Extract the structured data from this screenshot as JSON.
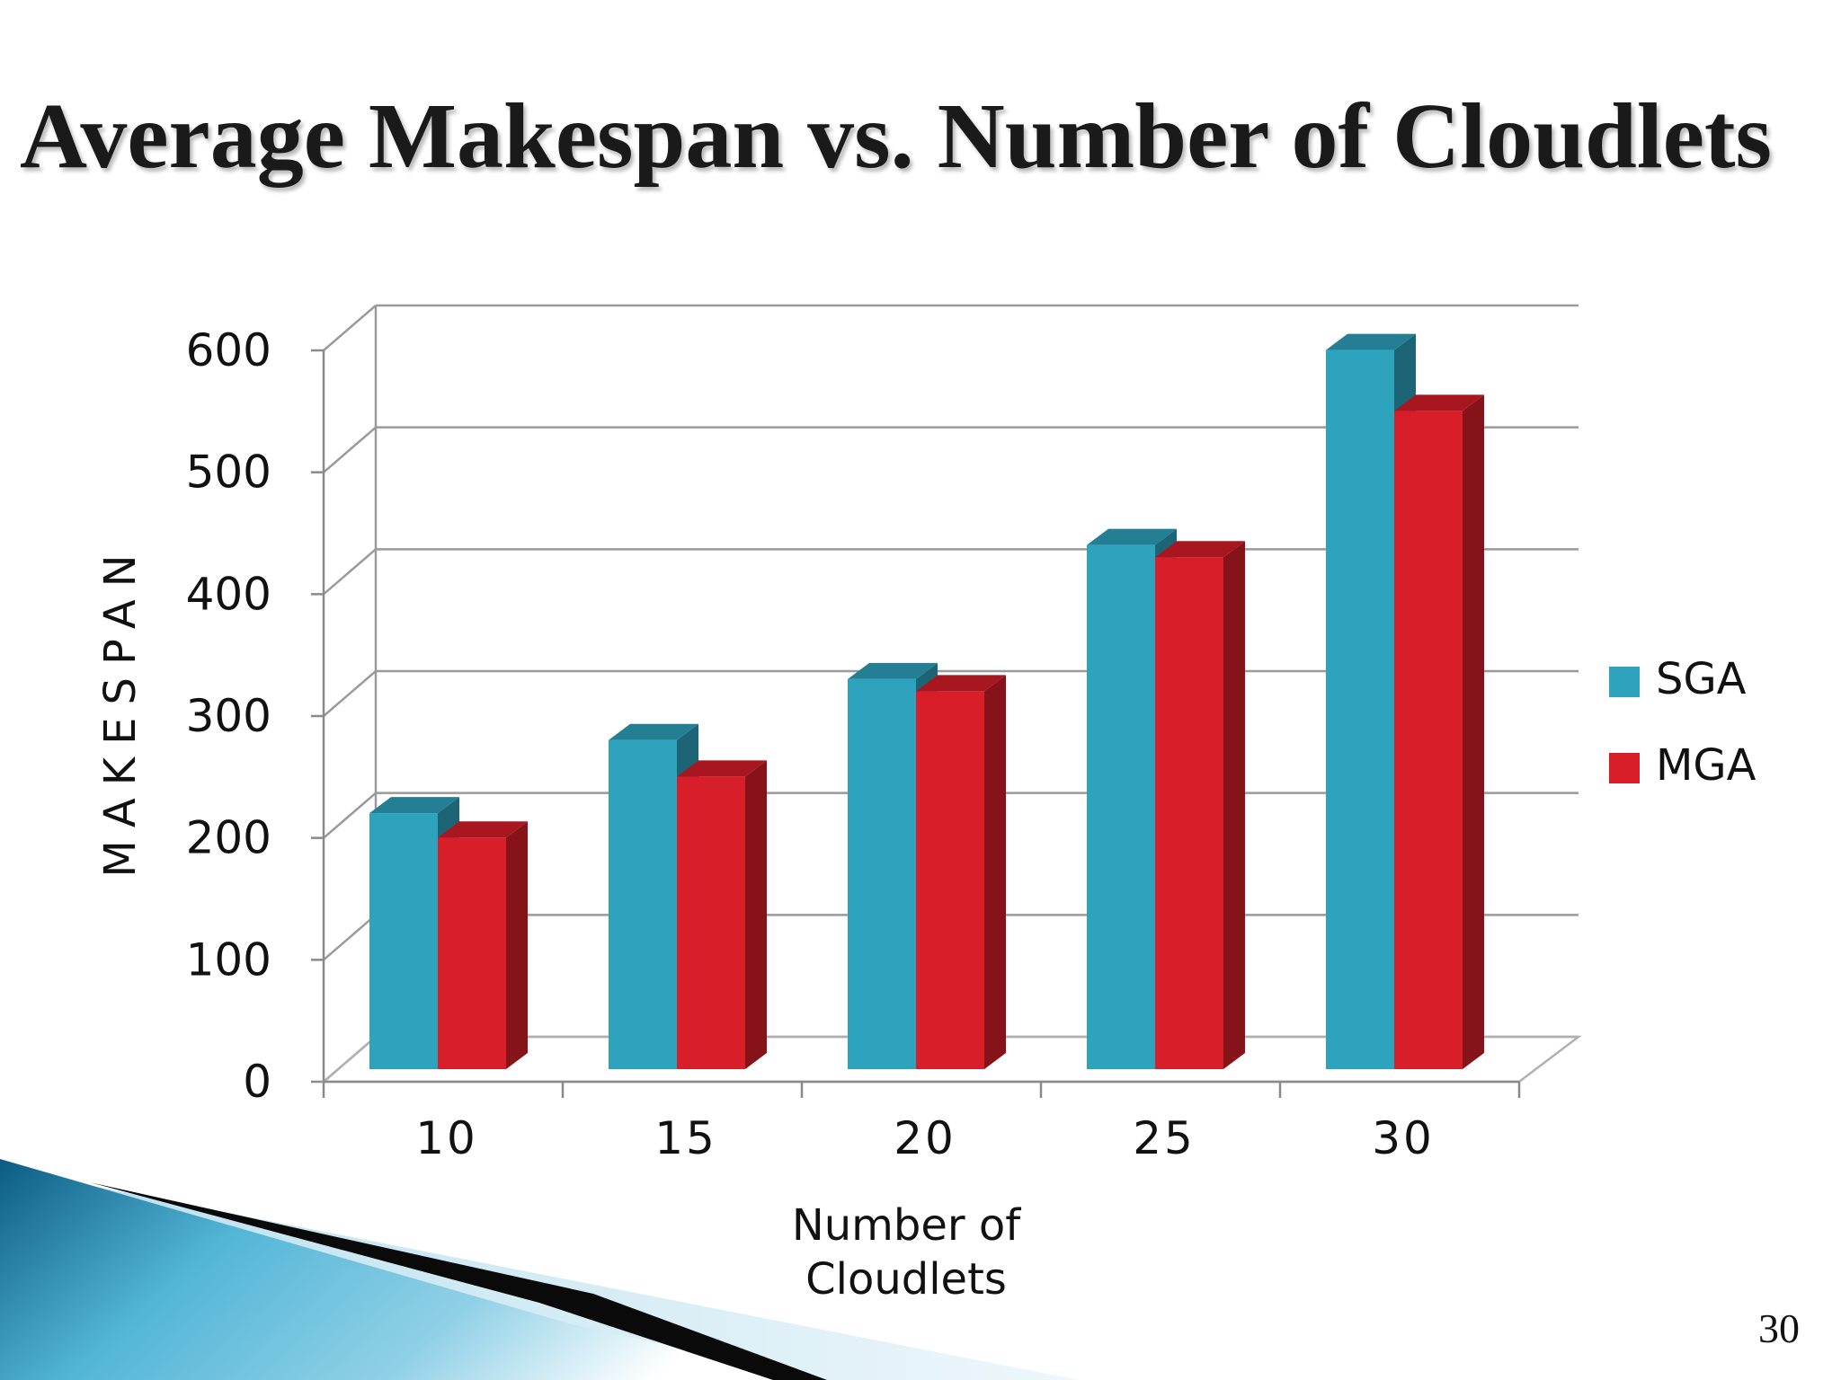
{
  "slide": {
    "title": "Average Makespan vs. Number of Cloudlets",
    "page_number": "30"
  },
  "chart_data": {
    "type": "bar",
    "style": "3d-clustered-column",
    "title": "",
    "xlabel": "Number of Cloudlets",
    "ylabel": "MAKESPAN",
    "categories": [
      "10",
      "15",
      "20",
      "25",
      "30"
    ],
    "series": [
      {
        "name": "SGA",
        "values": [
          210,
          270,
          320,
          430,
          590
        ],
        "color": "#2ea3be"
      },
      {
        "name": "MGA",
        "values": [
          190,
          240,
          310,
          420,
          540
        ],
        "color": "#d81e28"
      }
    ],
    "ylim": [
      0,
      600
    ],
    "yticks": [
      "0",
      "100",
      "200",
      "300",
      "400",
      "500",
      "600"
    ],
    "grid": true,
    "legend_position": "right"
  }
}
